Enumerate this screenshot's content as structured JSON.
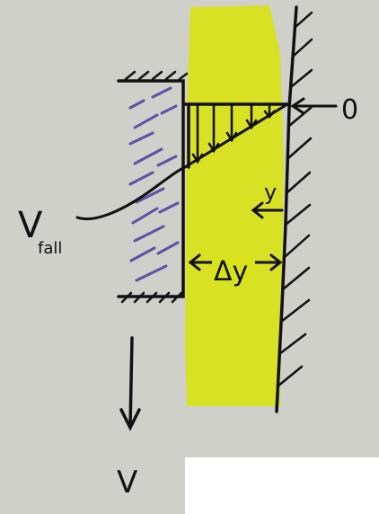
{
  "diagram": {
    "labels": {
      "origin": "0",
      "v_fall_main": "V",
      "v_fall_sub": "fall",
      "y_axis": "y",
      "gap": "Δy",
      "velocity": "V"
    },
    "colors": {
      "paper": "#cfd0ca",
      "fluid_highlight": "#d9e21a",
      "ink": "#111111",
      "plate_hatch": "#5b52a8"
    }
  }
}
